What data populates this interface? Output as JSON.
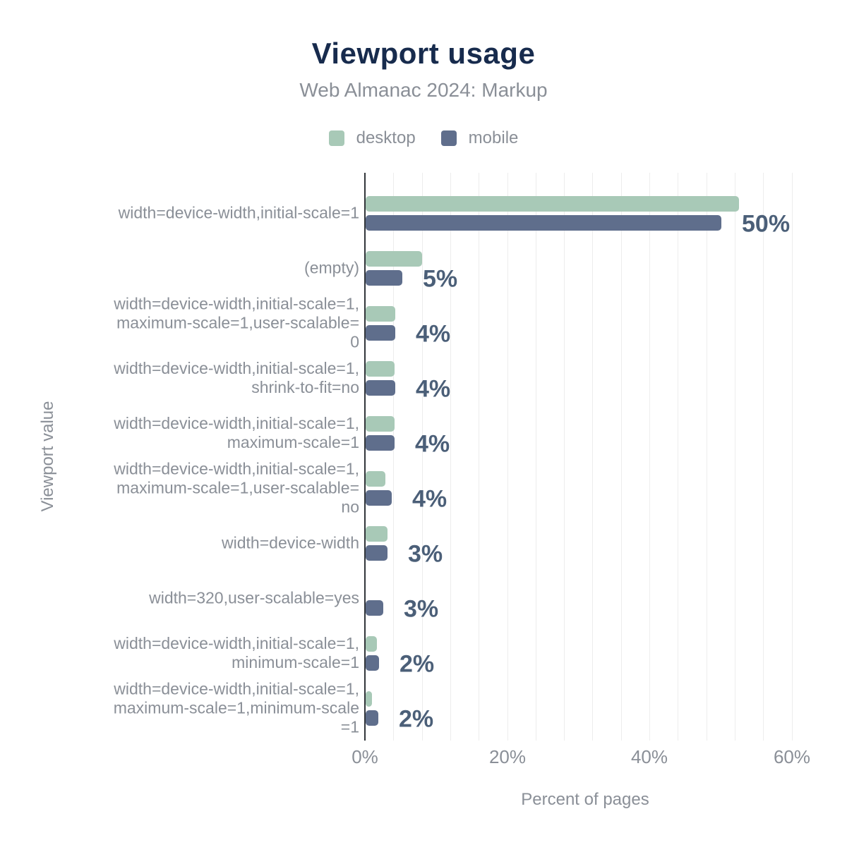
{
  "chart_data": {
    "type": "bar",
    "orientation": "horizontal",
    "title": "Viewport usage",
    "subtitle": "Web Almanac 2024: Markup",
    "xlabel": "Percent of pages",
    "ylabel": "Viewport value",
    "xlim": [
      0,
      62
    ],
    "x_ticks": [
      {
        "value": 0,
        "label": "0%"
      },
      {
        "value": 20,
        "label": "20%"
      },
      {
        "value": 40,
        "label": "40%"
      },
      {
        "value": 60,
        "label": "60%"
      }
    ],
    "minor_gridline_step_percent": 4,
    "grid": "vertical-minor-on",
    "legend_position": "top-center",
    "categories": [
      "width=device-width,initial-scale=1",
      "(empty)",
      "width=device-width,initial-scale=1,\nmaximum-scale=1,user-scalable=\n0",
      "width=device-width,initial-scale=1,\nshrink-to-fit=no",
      "width=device-width,initial-scale=1,\nmaximum-scale=1",
      "width=device-width,initial-scale=1,\nmaximum-scale=1,user-scalable=\nno",
      "width=device-width",
      "width=320,user-scalable=yes",
      "width=device-width,initial-scale=1,\nminimum-scale=1",
      "width=device-width,initial-scale=1,\nmaximum-scale=1,minimum-scale\n=1"
    ],
    "series": [
      {
        "name": "desktop",
        "color": "#a8c9b7",
        "values": [
          52.5,
          7.9,
          4.2,
          4.1,
          4.1,
          2.8,
          3.1,
          0,
          1.6,
          0.9
        ]
      },
      {
        "name": "mobile",
        "color": "#5f6e8c",
        "values": [
          50,
          5.2,
          4.2,
          4.2,
          4.1,
          3.7,
          3.1,
          2.5,
          1.9,
          1.8
        ]
      }
    ],
    "value_labels": [
      "50%",
      "5%",
      "4%",
      "4%",
      "4%",
      "4%",
      "3%",
      "3%",
      "2%",
      "2%"
    ]
  },
  "colors": {
    "title": "#172b4d",
    "muted_text": "#8a8f97",
    "value_label": "#4b5f78",
    "axis_line": "#32363b",
    "gridline": "#ededed",
    "background": "#ffffff"
  }
}
